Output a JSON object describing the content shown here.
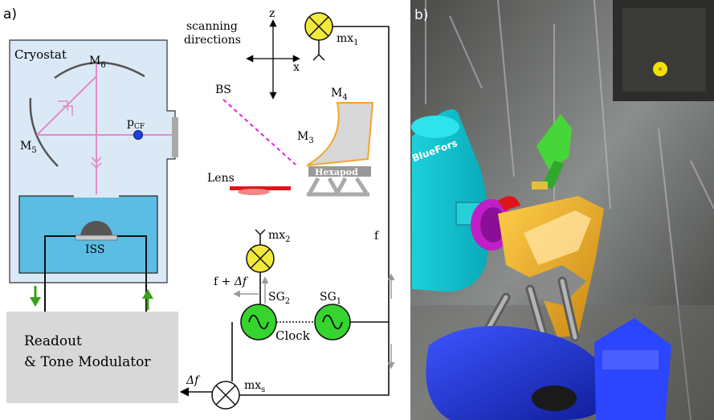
{
  "panel_a": {
    "label": "a)",
    "cryostat": "Cryostat",
    "m6": "M",
    "m6_sub": "6",
    "m5": "M",
    "m5_sub": "5",
    "pcf": "p",
    "pcf_sub": "CF",
    "iss": "ISS",
    "readout_line1": "Readout",
    "readout_line2": "& Tone Modulator",
    "scan_line1": "scanning",
    "scan_line2": "directions",
    "axis_z": "z",
    "axis_x": "x",
    "bs": "BS",
    "m4": "M",
    "m4_sub": "4",
    "m3": "M",
    "m3_sub": "3",
    "hexapod": "Hexapod",
    "lens": "Lens",
    "mx1": "mx",
    "mx1_sub": "1",
    "mx2": "mx",
    "mx2_sub": "2",
    "mxs": "mx",
    "mxs_sub": "s",
    "f": "f",
    "f_plus": "f + ",
    "delta_f": "Δf",
    "sg2": "SG",
    "sg2_sub": "2",
    "sg1": "SG",
    "sg1_sub": "1",
    "clock": "Clock",
    "delta_f_out": "Δf"
  },
  "panel_b": {
    "label": "b)",
    "bluefors": "BlueFors"
  },
  "colors": {
    "cryostat_fill": "#dbe9f7",
    "bath": "#5bbde3",
    "beam": "#e48ac6",
    "mixer": "#f2ea3a",
    "source": "#35d42f",
    "arrow_green": "#3aa019",
    "orange": "#f3a52a",
    "lens_red": "#e0141c",
    "bs_magenta": "#e024e0",
    "readout_gray": "#d8d8d8"
  }
}
